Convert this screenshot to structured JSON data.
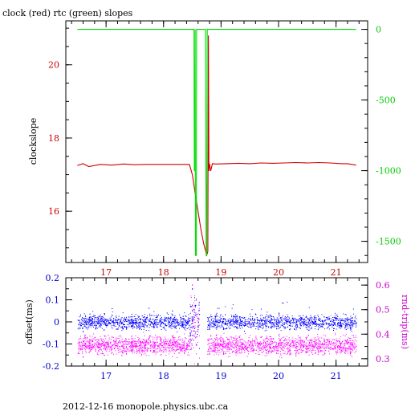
{
  "title": "clock (red) rtc (green) slopes",
  "footer": "2012-12-16  monopole.physics.ubc.ca",
  "colors": {
    "clock": "#cc0000",
    "rtc": "#00dd00",
    "offset": "#0000ff",
    "rndtrip": "#ff00ff",
    "axis_top_left": "#cc0000",
    "axis_top_right": "#00cc00",
    "axis_bottom_left": "#0000cc",
    "axis_bottom_right": "#cc00cc",
    "frame": "#000000"
  },
  "chart_data": [
    {
      "type": "line",
      "title": "clock (red) rtc (green) slopes",
      "xlim": [
        16.3,
        21.55
      ],
      "x_ticks": [
        "17",
        "18",
        "19",
        "20",
        "21"
      ],
      "ylabel": "clockslope",
      "ylim": [
        14.6,
        21.2
      ],
      "y_ticks": [
        "16",
        "18",
        "20"
      ],
      "y2lim": [
        -1650,
        60
      ],
      "y2_ticks": [
        "0",
        "-500",
        "-1000",
        "-1500"
      ],
      "series": [
        {
          "key": "clock",
          "axis": "left",
          "x": [
            16.5,
            16.6,
            16.7,
            16.9,
            17.1,
            17.3,
            17.5,
            17.7,
            17.9,
            18.1,
            18.3,
            18.45,
            18.5,
            18.55,
            18.6,
            18.65,
            18.7,
            18.75,
            18.77,
            18.78,
            18.79,
            18.8,
            18.82,
            18.85,
            18.9,
            19.1,
            19.3,
            19.5,
            19.7,
            19.9,
            20.1,
            20.3,
            20.5,
            20.7,
            20.9,
            21.1,
            21.2,
            21.35
          ],
          "y": [
            17.25,
            17.3,
            17.22,
            17.28,
            17.26,
            17.29,
            17.27,
            17.28,
            17.28,
            17.28,
            17.28,
            17.28,
            17.0,
            16.5,
            16.0,
            15.5,
            15.1,
            14.8,
            14.9,
            20.8,
            17.1,
            17.3,
            17.1,
            17.3,
            17.29,
            17.3,
            17.31,
            17.3,
            17.32,
            17.31,
            17.32,
            17.33,
            17.32,
            17.33,
            17.32,
            17.3,
            17.3,
            17.26
          ]
        },
        {
          "key": "rtc",
          "axis": "right",
          "x": [
            16.5,
            18.53,
            18.535,
            18.545,
            18.55,
            18.555,
            18.57,
            18.575,
            18.6,
            18.73,
            18.74,
            18.75,
            18.76,
            19.5,
            21.35
          ],
          "y": [
            0,
            0,
            -1000,
            -1000,
            0,
            -1600,
            -1600,
            0,
            0,
            0,
            -1600,
            -1600,
            0,
            0,
            0
          ]
        }
      ]
    },
    {
      "type": "scatter",
      "xlim": [
        16.3,
        21.55
      ],
      "x_ticks": [
        "17",
        "18",
        "19",
        "20",
        "21"
      ],
      "ylabel": "offset(ms)",
      "ylim": [
        -0.2,
        0.2
      ],
      "y_ticks": [
        "0.2",
        "0.1",
        "0",
        "-0.1",
        "-0.2"
      ],
      "y2label": "rnd-trip(ms)",
      "y2lim": [
        0.27,
        0.63
      ],
      "y2_ticks": [
        "0.6",
        "0.5",
        "0.4",
        "0.3"
      ],
      "series": [
        {
          "key": "offset",
          "axis": "left",
          "x_range": [
            16.5,
            21.35
          ],
          "gap": [
            18.62,
            18.76
          ],
          "center": 0.0,
          "spread": 0.02
        },
        {
          "key": "rndtrip",
          "axis": "right",
          "x_range": [
            16.5,
            21.35
          ],
          "gap": [
            18.62,
            18.76
          ],
          "center": 0.355,
          "spread": 0.022
        }
      ]
    }
  ]
}
